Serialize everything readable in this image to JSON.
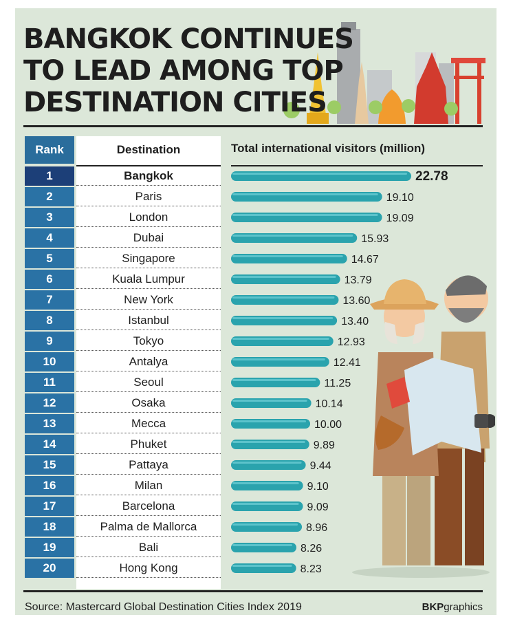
{
  "title_lines": [
    "BANGKOK CONTINUES",
    "TO LEAD AMONG TOP",
    "DESTINATION CITIES"
  ],
  "headers": {
    "rank": "Rank",
    "destination": "Destination",
    "visitors": "Total international visitors (million)"
  },
  "source": "Source: Mastercard Global Destination Cities Index 2019",
  "brand": {
    "bold": "BKP",
    "regular": "graphics"
  },
  "colors": {
    "rank_cell": "#2a72a5",
    "rank_cell_first": "#1c3f78",
    "bar": "#2aa3ad",
    "background": "#dce7d9"
  },
  "chart_data": {
    "type": "bar",
    "orientation": "horizontal",
    "title": "BANGKOK CONTINUES TO LEAD AMONG TOP DESTINATION CITIES",
    "xlabel": "Total international visitors (million)",
    "ranks": [
      "1",
      "2",
      "3",
      "4",
      "5",
      "6",
      "7",
      "8",
      "9",
      "10",
      "11",
      "12",
      "13",
      "14",
      "15",
      "16",
      "17",
      "18",
      "19",
      "20"
    ],
    "categories": [
      "Bangkok",
      "Paris",
      "London",
      "Dubai",
      "Singapore",
      "Kuala Lumpur",
      "New York",
      "Istanbul",
      "Tokyo",
      "Antalya",
      "Seoul",
      "Osaka",
      "Mecca",
      "Phuket",
      "Pattaya",
      "Milan",
      "Barcelona",
      "Palma de Mallorca",
      "Bali",
      "Hong Kong"
    ],
    "values": [
      22.78,
      19.1,
      19.09,
      15.93,
      14.67,
      13.79,
      13.6,
      13.4,
      12.93,
      12.41,
      11.25,
      10.14,
      10.0,
      9.89,
      9.44,
      9.1,
      9.09,
      8.96,
      8.26,
      8.23
    ],
    "value_labels": [
      "22.78",
      "19.10",
      "19.09",
      "15.93",
      "14.67",
      "13.79",
      "13.60",
      "13.40",
      "12.93",
      "12.41",
      "11.25",
      "10.14",
      "10.00",
      "9.89",
      "9.44",
      "9.10",
      "9.09",
      "8.96",
      "8.26",
      "8.23"
    ],
    "xlim": [
      0,
      22.78
    ],
    "grid": false,
    "legend": "none"
  }
}
